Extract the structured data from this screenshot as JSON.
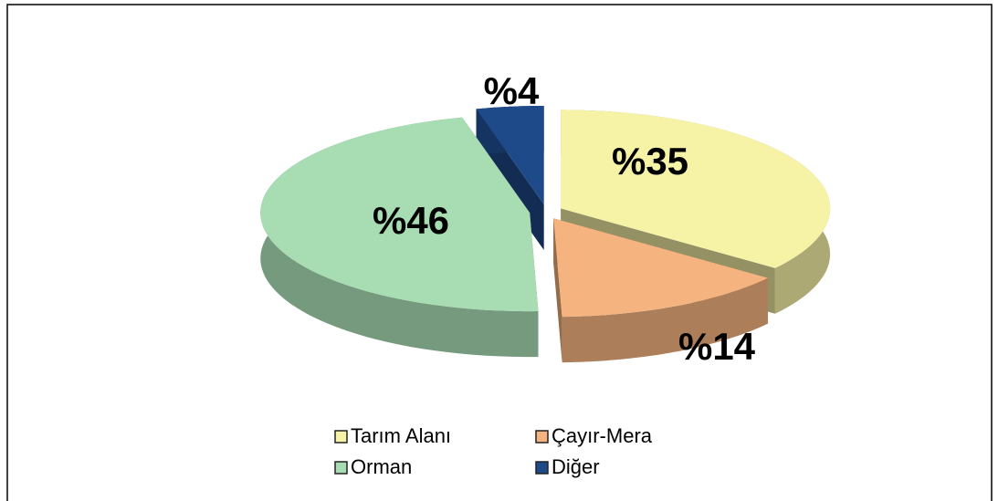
{
  "chart_data": {
    "type": "pie",
    "categories": [
      "Tarım Alanı",
      "Çayır-Mera",
      "Orman",
      "Diğer"
    ],
    "values": [
      35,
      14,
      46,
      4
    ],
    "value_labels": [
      "%35",
      "%14",
      "%46",
      "%4"
    ],
    "colors": [
      "#f6f2a6",
      "#f5b47f",
      "#a8dcb2",
      "#1f4a8a"
    ],
    "legend": "bottom"
  }
}
